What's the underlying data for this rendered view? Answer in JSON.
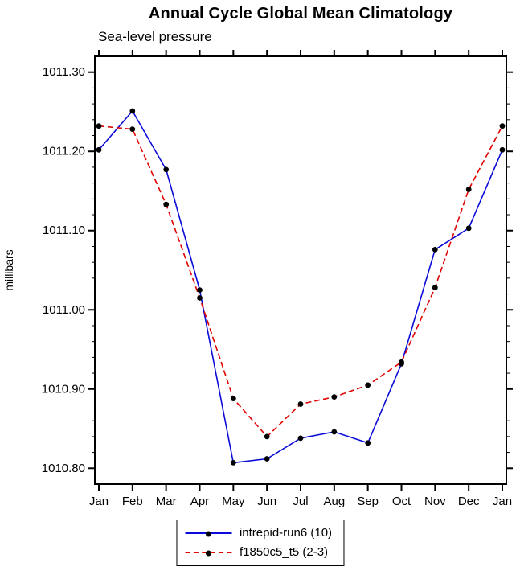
{
  "title": "Annual Cycle Global Mean Climatology",
  "subtitle": "Sea-level pressure",
  "legend": {
    "entries": [
      {
        "label": "intrepid-run6 (10)",
        "color": "#0a0ad8",
        "style": "solid"
      },
      {
        "label": "f1850c5_t5 (2-3)",
        "color": "#e00000",
        "style": "dashed"
      }
    ]
  },
  "chart_data": {
    "type": "line",
    "categories": [
      "Jan",
      "Feb",
      "Mar",
      "Apr",
      "May",
      "Jun",
      "Jul",
      "Aug",
      "Sep",
      "Oct",
      "Nov",
      "Dec",
      "Jan"
    ],
    "series": [
      {
        "name": "intrepid-run6 (10)",
        "color": "#0a0ad8",
        "line_style": "solid",
        "marker": "filled-circle",
        "marker_color": "#000000",
        "values": [
          1011.202,
          1011.251,
          1011.177,
          1011.025,
          1010.807,
          1010.812,
          1010.838,
          1010.846,
          1010.832,
          1010.932,
          1011.076,
          1011.103,
          1011.202
        ]
      },
      {
        "name": "f1850c5_t5 (2-3)",
        "color": "#e00000",
        "line_style": "dashed",
        "marker": "filled-circle",
        "marker_color": "#000000",
        "values": [
          1011.232,
          1011.228,
          1011.133,
          1011.015,
          1010.888,
          1010.84,
          1010.881,
          1010.89,
          1010.905,
          1010.934,
          1011.028,
          1011.152,
          1011.232
        ]
      }
    ],
    "xlabel": "",
    "ylabel": "millibars",
    "ylim": [
      1010.78,
      1011.32
    ],
    "y_major_ticks": [
      1010.8,
      1010.9,
      1011.0,
      1011.1,
      1011.2,
      1011.3
    ],
    "y_tick_labels": [
      "1010.80",
      "1010.90",
      "1011.00",
      "1011.10",
      "1011.20",
      "1011.30"
    ],
    "y_minor_step": 0.02,
    "grid": false,
    "legend_position": "bottom-center",
    "axis_color": "#000000",
    "text_color": "#000000"
  }
}
